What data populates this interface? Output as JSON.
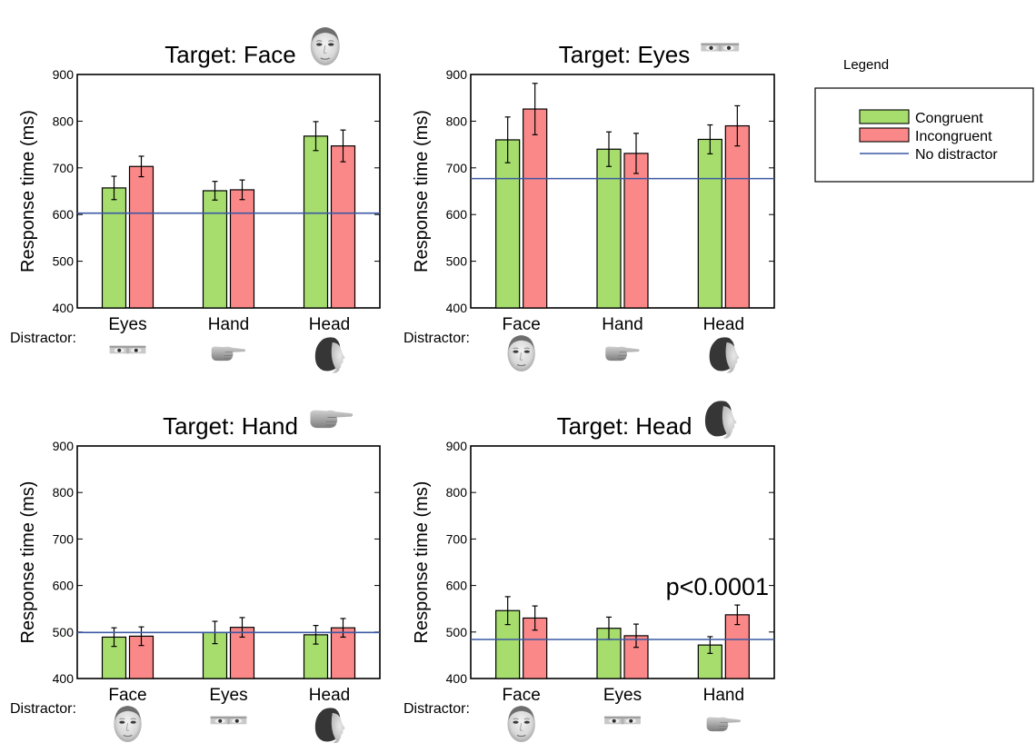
{
  "legend": {
    "title": "Legend",
    "items": [
      {
        "label": "Congruent",
        "color": "#a6dd6d",
        "kind": "bar"
      },
      {
        "label": "Incongruent",
        "color": "#fb8888",
        "kind": "bar"
      },
      {
        "label": "No distractor",
        "color": "#3b58a3",
        "kind": "line"
      }
    ]
  },
  "distractor_label": "Distractor:",
  "icon_names": [
    "face-icon",
    "eyes-icon",
    "hand-icon",
    "head-icon"
  ],
  "chart_data": [
    {
      "type": "bar",
      "title": "Target: Face",
      "target_icon": "face-icon",
      "ylabel": "Response time (ms)",
      "ylim": [
        400,
        900
      ],
      "yticks": [
        400,
        500,
        600,
        700,
        800,
        900
      ],
      "categories": [
        "Eyes",
        "Hand",
        "Head"
      ],
      "category_icons": [
        "eyes-icon",
        "hand-icon",
        "head-icon"
      ],
      "series": [
        {
          "name": "Congruent",
          "values": [
            657,
            651,
            768
          ],
          "errors": [
            25,
            20,
            31
          ]
        },
        {
          "name": "Incongruent",
          "values": [
            703,
            653,
            747
          ],
          "errors": [
            22,
            21,
            34
          ]
        }
      ],
      "baseline": {
        "name": "No distractor",
        "value": 603
      },
      "annotation": ""
    },
    {
      "type": "bar",
      "title": "Target: Eyes",
      "target_icon": "eyes-icon",
      "ylabel": "Response time (ms)",
      "ylim": [
        400,
        900
      ],
      "yticks": [
        400,
        500,
        600,
        700,
        800,
        900
      ],
      "categories": [
        "Face",
        "Hand",
        "Head"
      ],
      "category_icons": [
        "face-icon",
        "hand-icon",
        "head-icon"
      ],
      "series": [
        {
          "name": "Congruent",
          "values": [
            760,
            740,
            761
          ],
          "errors": [
            49,
            37,
            31
          ]
        },
        {
          "name": "Incongruent",
          "values": [
            826,
            731,
            790
          ],
          "errors": [
            55,
            43,
            43
          ]
        }
      ],
      "baseline": {
        "name": "No distractor",
        "value": 677
      },
      "annotation": ""
    },
    {
      "type": "bar",
      "title": "Target: Hand",
      "target_icon": "hand-icon",
      "ylabel": "Response time (ms)",
      "ylim": [
        400,
        900
      ],
      "yticks": [
        400,
        500,
        600,
        700,
        800,
        900
      ],
      "categories": [
        "Face",
        "Eyes",
        "Head"
      ],
      "category_icons": [
        "face-icon",
        "eyes-icon",
        "head-icon"
      ],
      "series": [
        {
          "name": "Congruent",
          "values": [
            489,
            499,
            494
          ],
          "errors": [
            20,
            24,
            20
          ]
        },
        {
          "name": "Incongruent",
          "values": [
            491,
            510,
            509
          ],
          "errors": [
            20,
            21,
            20
          ]
        }
      ],
      "baseline": {
        "name": "No distractor",
        "value": 499
      },
      "annotation": ""
    },
    {
      "type": "bar",
      "title": "Target: Head",
      "target_icon": "head-icon",
      "ylabel": "Response time (ms)",
      "ylim": [
        400,
        900
      ],
      "yticks": [
        400,
        500,
        600,
        700,
        800,
        900
      ],
      "categories": [
        "Face",
        "Eyes",
        "Hand"
      ],
      "category_icons": [
        "face-icon",
        "eyes-icon",
        "hand-icon"
      ],
      "series": [
        {
          "name": "Congruent",
          "values": [
            546,
            508,
            472
          ],
          "errors": [
            30,
            24,
            18
          ]
        },
        {
          "name": "Incongruent",
          "values": [
            530,
            492,
            537
          ],
          "errors": [
            26,
            25,
            21
          ]
        }
      ],
      "baseline": {
        "name": "No distractor",
        "value": 484
      },
      "annotation": "p<0.0001"
    }
  ]
}
